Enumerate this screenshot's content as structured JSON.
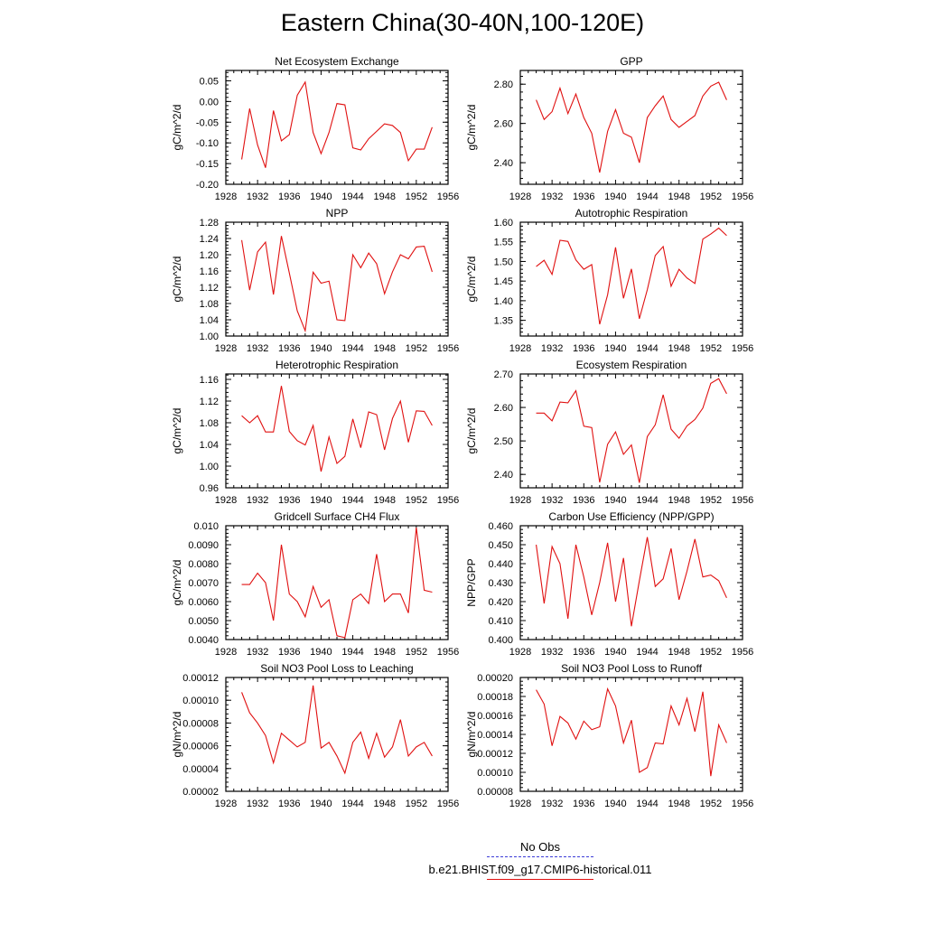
{
  "title": "Eastern China(30-40N,100-120E)",
  "legend": {
    "obs_label": "No Obs",
    "model_label": "b.e21.BHIST.f09_g17.CMIP6-historical.011",
    "obs_color": "#3b3bd8",
    "model_color": "#e01010"
  },
  "chart_data": [
    {
      "type": "line",
      "title": "Net Ecosystem Exchange",
      "ylabel": "gC/m^2/d",
      "xlim": [
        1928,
        1956
      ],
      "ylim": [
        -0.2,
        0.075
      ],
      "yticks": [
        -0.2,
        -0.15,
        -0.1,
        -0.05,
        0.0,
        0.05
      ],
      "yticklabels": [
        "-0.20",
        "-0.15",
        "-0.10",
        "-0.05",
        "0.00",
        "0.05"
      ],
      "series": [
        {
          "x": [
            1930,
            1931,
            1932,
            1933,
            1934,
            1935,
            1936,
            1937,
            1938,
            1939,
            1940,
            1941,
            1942,
            1943,
            1944,
            1945,
            1946,
            1947,
            1948,
            1949,
            1950,
            1951,
            1952,
            1953,
            1954
          ],
          "y": [
            -0.14,
            -0.017,
            -0.105,
            -0.16,
            -0.022,
            -0.095,
            -0.08,
            0.015,
            0.047,
            -0.075,
            -0.126,
            -0.075,
            -0.005,
            -0.008,
            -0.112,
            -0.117,
            -0.09,
            -0.072,
            -0.054,
            -0.058,
            -0.075,
            -0.143,
            -0.115,
            -0.115,
            -0.062
          ]
        }
      ]
    },
    {
      "type": "line",
      "title": "GPP",
      "ylabel": "gC/m^2/d",
      "xlim": [
        1928,
        1956
      ],
      "ylim": [
        2.29,
        2.87
      ],
      "yticks": [
        2.4,
        2.6,
        2.8
      ],
      "yticklabels": [
        "2.40",
        "2.60",
        "2.80"
      ],
      "series": [
        {
          "x": [
            1930,
            1931,
            1932,
            1933,
            1934,
            1935,
            1936,
            1937,
            1938,
            1939,
            1940,
            1941,
            1942,
            1943,
            1944,
            1945,
            1946,
            1947,
            1948,
            1949,
            1950,
            1951,
            1952,
            1953,
            1954
          ],
          "y": [
            2.72,
            2.62,
            2.66,
            2.78,
            2.65,
            2.75,
            2.63,
            2.55,
            2.35,
            2.56,
            2.67,
            2.55,
            2.53,
            2.4,
            2.63,
            2.69,
            2.74,
            2.62,
            2.58,
            2.61,
            2.64,
            2.74,
            2.79,
            2.81,
            2.72
          ]
        }
      ]
    },
    {
      "type": "line",
      "title": "NPP",
      "ylabel": "gC/m^2/d",
      "xlim": [
        1928,
        1956
      ],
      "ylim": [
        1.0,
        1.28
      ],
      "yticks": [
        1.0,
        1.04,
        1.08,
        1.12,
        1.16,
        1.2,
        1.24,
        1.28
      ],
      "yticklabels": [
        "1.00",
        "1.04",
        "1.08",
        "1.12",
        "1.16",
        "1.20",
        "1.24",
        "1.28"
      ],
      "series": [
        {
          "x": [
            1930,
            1931,
            1932,
            1933,
            1934,
            1935,
            1936,
            1937,
            1938,
            1939,
            1940,
            1941,
            1942,
            1943,
            1944,
            1945,
            1946,
            1947,
            1948,
            1949,
            1950,
            1951,
            1952,
            1953,
            1954
          ],
          "y": [
            1.236,
            1.113,
            1.207,
            1.231,
            1.102,
            1.246,
            1.155,
            1.062,
            1.013,
            1.157,
            1.13,
            1.135,
            1.04,
            1.038,
            1.2,
            1.168,
            1.204,
            1.178,
            1.104,
            1.158,
            1.2,
            1.19,
            1.219,
            1.221,
            1.158
          ]
        }
      ]
    },
    {
      "type": "line",
      "title": "Autotrophic Respiration",
      "ylabel": "gC/m^2/d",
      "xlim": [
        1928,
        1956
      ],
      "ylim": [
        1.31,
        1.6
      ],
      "yticks": [
        1.35,
        1.4,
        1.45,
        1.5,
        1.55,
        1.6
      ],
      "yticklabels": [
        "1.35",
        "1.40",
        "1.45",
        "1.50",
        "1.55",
        "1.60"
      ],
      "series": [
        {
          "x": [
            1930,
            1931,
            1932,
            1933,
            1934,
            1935,
            1936,
            1937,
            1938,
            1939,
            1940,
            1941,
            1942,
            1943,
            1944,
            1945,
            1946,
            1947,
            1948,
            1949,
            1950,
            1951,
            1952,
            1953,
            1954
          ],
          "y": [
            1.487,
            1.503,
            1.467,
            1.554,
            1.551,
            1.504,
            1.48,
            1.492,
            1.34,
            1.415,
            1.536,
            1.406,
            1.481,
            1.354,
            1.428,
            1.515,
            1.538,
            1.437,
            1.48,
            1.458,
            1.444,
            1.557,
            1.57,
            1.585,
            1.566
          ]
        }
      ]
    },
    {
      "type": "line",
      "title": "Heterotrophic Respiration",
      "ylabel": "gC/m^2/d",
      "xlim": [
        1928,
        1956
      ],
      "ylim": [
        0.96,
        1.17
      ],
      "yticks": [
        0.96,
        1.0,
        1.04,
        1.08,
        1.12,
        1.16
      ],
      "yticklabels": [
        "0.96",
        "1.00",
        "1.04",
        "1.08",
        "1.12",
        "1.16"
      ],
      "series": [
        {
          "x": [
            1930,
            1931,
            1932,
            1933,
            1934,
            1935,
            1936,
            1937,
            1938,
            1939,
            1940,
            1941,
            1942,
            1943,
            1944,
            1945,
            1946,
            1947,
            1948,
            1949,
            1950,
            1951,
            1952,
            1953,
            1954
          ],
          "y": [
            1.093,
            1.08,
            1.093,
            1.063,
            1.063,
            1.148,
            1.064,
            1.047,
            1.039,
            1.075,
            0.99,
            1.054,
            1.005,
            1.018,
            1.087,
            1.034,
            1.1,
            1.095,
            1.03,
            1.088,
            1.12,
            1.044,
            1.102,
            1.101,
            1.075
          ]
        }
      ]
    },
    {
      "type": "line",
      "title": "Ecosystem Respiration",
      "ylabel": "gC/m^2/d",
      "xlim": [
        1928,
        1956
      ],
      "ylim": [
        2.36,
        2.7
      ],
      "yticks": [
        2.4,
        2.5,
        2.6,
        2.7
      ],
      "yticklabels": [
        "2.40",
        "2.50",
        "2.60",
        "2.70"
      ],
      "series": [
        {
          "x": [
            1930,
            1931,
            1932,
            1933,
            1934,
            1935,
            1936,
            1937,
            1938,
            1939,
            1940,
            1941,
            1942,
            1943,
            1944,
            1945,
            1946,
            1947,
            1948,
            1949,
            1950,
            1951,
            1952,
            1953,
            1954
          ],
          "y": [
            2.583,
            2.583,
            2.56,
            2.616,
            2.614,
            2.65,
            2.544,
            2.54,
            2.376,
            2.49,
            2.527,
            2.46,
            2.488,
            2.375,
            2.513,
            2.548,
            2.638,
            2.535,
            2.508,
            2.545,
            2.564,
            2.598,
            2.672,
            2.686,
            2.641
          ]
        }
      ]
    },
    {
      "type": "line",
      "title": "Gridcell Surface CH4 Flux",
      "ylabel": "gC/m^2/d",
      "xlim": [
        1928,
        1956
      ],
      "ylim": [
        0.004,
        0.01
      ],
      "yticks": [
        0.004,
        0.005,
        0.006,
        0.007,
        0.008,
        0.009,
        0.01
      ],
      "yticklabels": [
        "0.0040",
        "0.0050",
        "0.0060",
        "0.0070",
        "0.0080",
        "0.0090",
        "0.010"
      ],
      "series": [
        {
          "x": [
            1930,
            1931,
            1932,
            1933,
            1934,
            1935,
            1936,
            1937,
            1938,
            1939,
            1940,
            1941,
            1942,
            1943,
            1944,
            1945,
            1946,
            1947,
            1948,
            1949,
            1950,
            1951,
            1952,
            1953,
            1954
          ],
          "y": [
            0.0069,
            0.0069,
            0.0075,
            0.007,
            0.005,
            0.009,
            0.0064,
            0.006,
            0.0052,
            0.0068,
            0.0057,
            0.0061,
            0.0042,
            0.0041,
            0.0061,
            0.0064,
            0.0059,
            0.0085,
            0.006,
            0.0064,
            0.0064,
            0.0054,
            0.0099,
            0.0066,
            0.0065
          ]
        }
      ]
    },
    {
      "type": "line",
      "title": "Carbon Use Efficiency (NPP/GPP)",
      "ylabel": "NPP/GPP",
      "xlim": [
        1928,
        1956
      ],
      "ylim": [
        0.4,
        0.46
      ],
      "yticks": [
        0.4,
        0.41,
        0.42,
        0.43,
        0.44,
        0.45,
        0.46
      ],
      "yticklabels": [
        "0.400",
        "0.410",
        "0.420",
        "0.430",
        "0.440",
        "0.450",
        "0.460"
      ],
      "series": [
        {
          "x": [
            1930,
            1931,
            1932,
            1933,
            1934,
            1935,
            1936,
            1937,
            1938,
            1939,
            1940,
            1941,
            1942,
            1943,
            1944,
            1945,
            1946,
            1947,
            1948,
            1949,
            1950,
            1951,
            1952,
            1953,
            1954
          ],
          "y": [
            0.45,
            0.419,
            0.449,
            0.44,
            0.411,
            0.45,
            0.433,
            0.413,
            0.43,
            0.451,
            0.42,
            0.443,
            0.407,
            0.431,
            0.454,
            0.428,
            0.432,
            0.448,
            0.421,
            0.436,
            0.453,
            0.433,
            0.434,
            0.431,
            0.422
          ]
        }
      ]
    },
    {
      "type": "line",
      "title": "Soil NO3 Pool Loss to Leaching",
      "ylabel": "gN/m^2/d",
      "xlim": [
        1928,
        1956
      ],
      "ylim": [
        2e-05,
        0.00012
      ],
      "yticks": [
        2e-05,
        4e-05,
        6e-05,
        8e-05,
        0.0001,
        0.00012
      ],
      "yticklabels": [
        "0.00002",
        "0.00004",
        "0.00006",
        "0.00008",
        "0.00010",
        "0.00012"
      ],
      "series": [
        {
          "x": [
            1930,
            1931,
            1932,
            1933,
            1934,
            1935,
            1936,
            1937,
            1938,
            1939,
            1940,
            1941,
            1942,
            1943,
            1944,
            1945,
            1946,
            1947,
            1948,
            1949,
            1950,
            1951,
            1952,
            1953,
            1954
          ],
          "y": [
            0.000107,
            8.9e-05,
            8e-05,
            6.9e-05,
            4.5e-05,
            7.1e-05,
            6.5e-05,
            5.9e-05,
            6.3e-05,
            0.000113,
            5.8e-05,
            6.3e-05,
            5.1e-05,
            3.6e-05,
            6.3e-05,
            7.2e-05,
            4.9e-05,
            7.1e-05,
            5e-05,
            5.9e-05,
            8.3e-05,
            5.1e-05,
            5.9e-05,
            6.3e-05,
            5.1e-05
          ]
        }
      ]
    },
    {
      "type": "line",
      "title": "Soil NO3 Pool Loss to Runoff",
      "ylabel": "gN/m^2/d",
      "xlim": [
        1928,
        1956
      ],
      "ylim": [
        8e-05,
        0.0002
      ],
      "yticks": [
        8e-05,
        0.0001,
        0.00012,
        0.00014,
        0.00016,
        0.00018,
        0.0002
      ],
      "yticklabels": [
        "0.00008",
        "0.00010",
        "0.00012",
        "0.00014",
        "0.00016",
        "0.00018",
        "0.00020"
      ],
      "series": [
        {
          "x": [
            1930,
            1931,
            1932,
            1933,
            1934,
            1935,
            1936,
            1937,
            1938,
            1939,
            1940,
            1941,
            1942,
            1943,
            1944,
            1945,
            1946,
            1947,
            1948,
            1949,
            1950,
            1951,
            1952,
            1953,
            1954
          ],
          "y": [
            0.000187,
            0.000172,
            0.000128,
            0.000159,
            0.000152,
            0.000135,
            0.000154,
            0.000145,
            0.000148,
            0.000188,
            0.00017,
            0.000131,
            0.000155,
            0.0001,
            0.000105,
            0.000131,
            0.00013,
            0.00017,
            0.00015,
            0.000178,
            0.000143,
            0.000185,
            9.6e-05,
            0.00015,
            0.000131
          ]
        }
      ]
    }
  ],
  "xticks": [
    1928,
    1932,
    1936,
    1940,
    1944,
    1948,
    1952,
    1956
  ],
  "xticklabels": [
    "1928",
    "1932",
    "1936",
    "1940",
    "1944",
    "1948",
    "1952",
    "1956"
  ]
}
